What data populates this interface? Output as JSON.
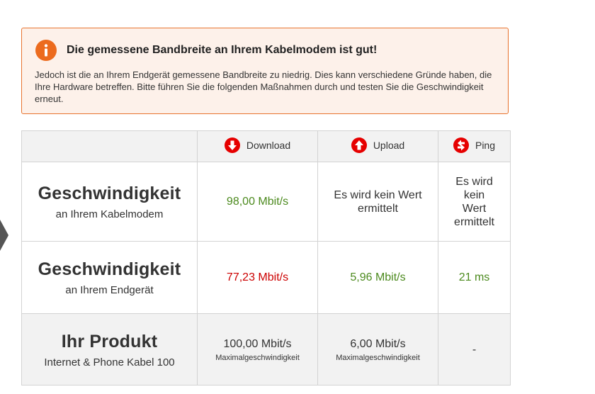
{
  "alert": {
    "icon": "info-icon",
    "accent_color": "#e8732e",
    "title": "Die gemessene Bandbreite an Ihrem Kabelmodem ist gut!",
    "text": "Jedoch ist die an Ihrem Endgerät gemessene Bandbreite zu niedrig. Dies kann verschiedene Gründe haben, die Ihre Hardware betreffen. Bitte führen Sie die folgenden Maßnahmen durch und testen Sie die Geschwindigkeit erneut."
  },
  "table": {
    "columns": [
      {
        "label": "Download",
        "icon": "download-arrow-icon"
      },
      {
        "label": "Upload",
        "icon": "upload-arrow-icon"
      },
      {
        "label": "Ping",
        "icon": "ping-icon"
      }
    ],
    "rows": [
      {
        "title": "Geschwindigkeit",
        "subtitle": "an Ihrem Kabelmodem",
        "download": "98,00 Mbit/s",
        "upload": "Es wird kein Wert ermittelt",
        "ping": "Es wird kein Wert ermittelt"
      },
      {
        "title": "Geschwindigkeit",
        "subtitle": "an Ihrem Endgerät",
        "download": "77,23 Mbit/s",
        "upload": "5,96 Mbit/s",
        "ping": "21 ms"
      },
      {
        "title": "Ihr Produkt",
        "subtitle": "Internet & Phone Kabel 100",
        "download": "100,00 Mbit/s",
        "download_note": "Maximalgeschwindigkeit",
        "upload": "6,00 Mbit/s",
        "upload_note": "Maximalgeschwindigkeit",
        "ping": "-"
      }
    ]
  },
  "colors": {
    "brand_red": "#e60000",
    "good_green": "#4c8a1e",
    "bad_red": "#cc0000",
    "alert_border": "#e8732e",
    "alert_background": "#fdf1ea"
  }
}
